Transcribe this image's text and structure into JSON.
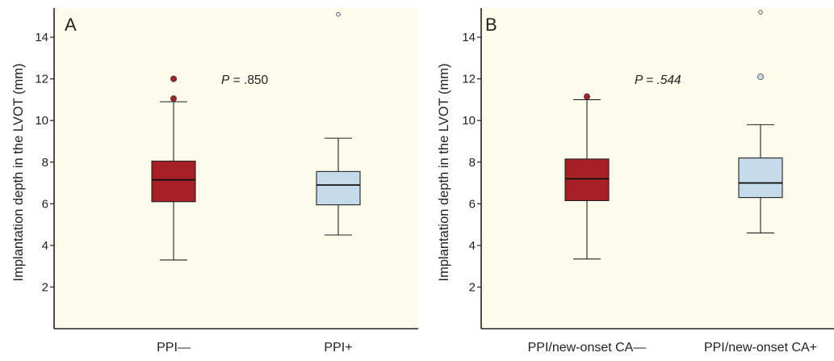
{
  "chart_data": [
    {
      "type": "box",
      "panel_label": "A",
      "ylabel": "Implantation depth in the LVOT (mm)",
      "ylim": [
        0,
        15.4
      ],
      "yticks": [
        2,
        4,
        6,
        8,
        10,
        12,
        14
      ],
      "annotation": {
        "p_symbol": "P",
        "p_value": " = .850",
        "p_italic": false
      },
      "background": "#fdfbec",
      "categories": [
        "PPI—",
        "PPI+"
      ],
      "boxes": [
        {
          "name": "PPI—",
          "color": "#a51f24",
          "whisker_low": 3.3,
          "q1": 6.1,
          "median": 7.15,
          "q3": 8.05,
          "whisker_high": 10.9,
          "outliers": [
            11.05
          ],
          "extremes": [
            12.0
          ]
        },
        {
          "name": "PPI+",
          "color": "#c5dbec",
          "whisker_low": 4.5,
          "q1": 5.95,
          "median": 6.9,
          "q3": 7.55,
          "whisker_high": 9.15,
          "outliers": [],
          "extremes": [
            15.1
          ]
        }
      ]
    },
    {
      "type": "box",
      "panel_label": "B",
      "ylabel": "Implantation depth in the LVOT (mm)",
      "ylim": [
        0,
        15.4
      ],
      "yticks": [
        2,
        4,
        6,
        8,
        10,
        12,
        14
      ],
      "annotation": {
        "p_symbol": "P",
        "p_value": " = .544",
        "p_italic": true
      },
      "background": "#fdfbec",
      "categories": [
        "PPI/new-onset CA—",
        "PPI/new-onset CA+"
      ],
      "boxes": [
        {
          "name": "PPI/new-onset CA—",
          "color": "#a51f24",
          "whisker_low": 3.35,
          "q1": 6.15,
          "median": 7.2,
          "q3": 8.15,
          "whisker_high": 11.0,
          "outliers": [],
          "extremes": [
            11.15
          ]
        },
        {
          "name": "PPI/new-onset CA+",
          "color": "#c5dbec",
          "whisker_low": 4.6,
          "q1": 6.3,
          "median": 7.0,
          "q3": 8.2,
          "whisker_high": 9.8,
          "outliers": [
            12.1
          ],
          "extremes": [
            15.2
          ]
        }
      ]
    }
  ]
}
